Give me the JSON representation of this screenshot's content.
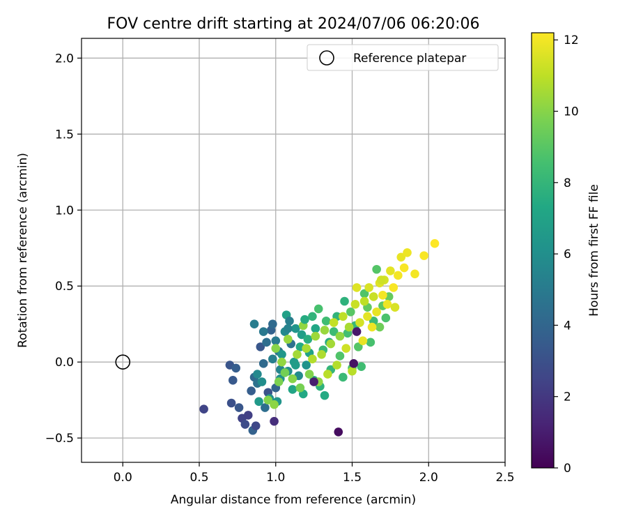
{
  "chart_data": {
    "type": "scatter",
    "title": "FOV centre drift starting at 2024/07/06 06:20:06",
    "xlabel": "Angular distance from reference (arcmin)",
    "ylabel": "Rotation from reference (arcmin)",
    "xlim": [
      -0.27,
      2.5
    ],
    "ylim": [
      -0.66,
      2.13
    ],
    "xticks": [
      0.0,
      0.5,
      1.0,
      1.5,
      2.0,
      2.5
    ],
    "xtick_labels": [
      "0.0",
      "0.5",
      "1.0",
      "1.5",
      "2.0",
      "2.5"
    ],
    "yticks": [
      -0.5,
      0.0,
      0.5,
      1.0,
      1.5,
      2.0
    ],
    "ytick_labels": [
      "−0.5",
      "0.0",
      "0.5",
      "1.0",
      "1.5",
      "2.0"
    ],
    "grid": true,
    "legend": {
      "placement": "top-right",
      "entries": [
        {
          "label": "Reference platepar",
          "marker": "open-circle"
        }
      ]
    },
    "reference_point": {
      "x": 0.0,
      "y": 0.0
    },
    "colorbar": {
      "label": "Hours from first FF file",
      "colormap": "viridis",
      "range": [
        0,
        12.2
      ],
      "ticks": [
        0,
        2,
        4,
        6,
        8,
        10,
        12
      ],
      "tick_labels": [
        "0",
        "2",
        "4",
        "6",
        "8",
        "10",
        "12"
      ]
    },
    "series": [
      {
        "points": [
          {
            "x": 0.53,
            "y": -0.31,
            "c": 2.5
          },
          {
            "x": 0.7,
            "y": -0.02,
            "c": 3.2
          },
          {
            "x": 0.71,
            "y": -0.27,
            "c": 3.0
          },
          {
            "x": 0.72,
            "y": -0.12,
            "c": 3.4
          },
          {
            "x": 0.74,
            "y": -0.04,
            "c": 3.6
          },
          {
            "x": 0.76,
            "y": -0.3,
            "c": 3.3
          },
          {
            "x": 0.78,
            "y": -0.37,
            "c": 2.4
          },
          {
            "x": 0.8,
            "y": -0.41,
            "c": 2.8
          },
          {
            "x": 0.82,
            "y": -0.35,
            "c": 2.3
          },
          {
            "x": 0.84,
            "y": -0.19,
            "c": 3.6
          },
          {
            "x": 0.85,
            "y": -0.45,
            "c": 3.8
          },
          {
            "x": 0.86,
            "y": -0.1,
            "c": 4.1
          },
          {
            "x": 0.87,
            "y": -0.42,
            "c": 2.6
          },
          {
            "x": 0.88,
            "y": -0.14,
            "c": 4.6
          },
          {
            "x": 0.9,
            "y": 0.1,
            "c": 3.3
          },
          {
            "x": 0.92,
            "y": -0.01,
            "c": 4.2
          },
          {
            "x": 0.93,
            "y": -0.3,
            "c": 4.4
          },
          {
            "x": 0.95,
            "y": -0.2,
            "c": 3.1
          },
          {
            "x": 0.97,
            "y": 0.21,
            "c": 3.8
          },
          {
            "x": 0.98,
            "y": 0.02,
            "c": 5.2
          },
          {
            "x": 0.99,
            "y": -0.39,
            "c": 1.6
          },
          {
            "x": 1.0,
            "y": -0.17,
            "c": 3.9
          },
          {
            "x": 1.02,
            "y": 0.07,
            "c": 4.7
          },
          {
            "x": 1.03,
            "y": -0.05,
            "c": 5.5
          },
          {
            "x": 0.86,
            "y": 0.25,
            "c": 5.1
          },
          {
            "x": 0.88,
            "y": -0.08,
            "c": 5.7
          },
          {
            "x": 0.89,
            "y": -0.26,
            "c": 6.5
          },
          {
            "x": 0.91,
            "y": -0.13,
            "c": 5.9
          },
          {
            "x": 0.94,
            "y": 0.13,
            "c": 4.4
          },
          {
            "x": 0.96,
            "y": -0.24,
            "c": 6.0
          },
          {
            "x": 0.98,
            "y": 0.25,
            "c": 4.2
          },
          {
            "x": 1.0,
            "y": 0.14,
            "c": 5.0
          },
          {
            "x": 1.01,
            "y": -0.26,
            "c": 6.3
          },
          {
            "x": 1.03,
            "y": -0.11,
            "c": 6.1
          },
          {
            "x": 1.04,
            "y": 0.05,
            "c": 6.4
          },
          {
            "x": 1.06,
            "y": 0.2,
            "c": 5.7
          },
          {
            "x": 1.07,
            "y": 0.31,
            "c": 6.9
          },
          {
            "x": 1.08,
            "y": -0.06,
            "c": 6.0
          },
          {
            "x": 1.09,
            "y": 0.27,
            "c": 5.2
          },
          {
            "x": 1.1,
            "y": 0.12,
            "c": 4.6
          },
          {
            "x": 1.11,
            "y": -0.18,
            "c": 7.1
          },
          {
            "x": 1.12,
            "y": 0.0,
            "c": 6.6
          },
          {
            "x": 1.13,
            "y": 0.22,
            "c": 6.3
          },
          {
            "x": 1.15,
            "y": -0.09,
            "c": 5.8
          },
          {
            "x": 1.16,
            "y": 0.1,
            "c": 7.4
          },
          {
            "x": 1.17,
            "y": 0.18,
            "c": 6.8
          },
          {
            "x": 1.18,
            "y": -0.21,
            "c": 7.3
          },
          {
            "x": 1.2,
            "y": -0.02,
            "c": 6.2
          },
          {
            "x": 1.21,
            "y": 0.15,
            "c": 7.6
          },
          {
            "x": 1.22,
            "y": 0.06,
            "c": 7.0
          },
          {
            "x": 1.24,
            "y": 0.3,
            "c": 7.9
          },
          {
            "x": 1.25,
            "y": -0.12,
            "c": 7.7
          },
          {
            "x": 1.26,
            "y": 0.22,
            "c": 7.2
          },
          {
            "x": 1.28,
            "y": 0.35,
            "c": 8.6
          },
          {
            "x": 1.29,
            "y": -0.16,
            "c": 7.8
          },
          {
            "x": 1.31,
            "y": 0.08,
            "c": 8.1
          },
          {
            "x": 1.32,
            "y": -0.22,
            "c": 7.4
          },
          {
            "x": 1.33,
            "y": 0.27,
            "c": 8.4
          },
          {
            "x": 1.35,
            "y": 0.13,
            "c": 7.5
          },
          {
            "x": 1.36,
            "y": -0.05,
            "c": 8.0
          },
          {
            "x": 1.38,
            "y": 0.2,
            "c": 8.3
          },
          {
            "x": 1.4,
            "y": 0.3,
            "c": 7.9
          },
          {
            "x": 1.42,
            "y": 0.04,
            "c": 8.8
          },
          {
            "x": 1.44,
            "y": -0.1,
            "c": 8.2
          },
          {
            "x": 1.45,
            "y": 0.4,
            "c": 7.8
          },
          {
            "x": 1.47,
            "y": 0.19,
            "c": 8.5
          },
          {
            "x": 1.49,
            "y": 0.33,
            "c": 9.0
          },
          {
            "x": 1.5,
            "y": -0.04,
            "c": 8.7
          },
          {
            "x": 1.52,
            "y": 0.24,
            "c": 8.1
          },
          {
            "x": 1.54,
            "y": 0.1,
            "c": 8.9
          },
          {
            "x": 1.56,
            "y": -0.03,
            "c": 8.4
          },
          {
            "x": 1.58,
            "y": 0.45,
            "c": 8.8
          },
          {
            "x": 1.6,
            "y": 0.36,
            "c": 9.2
          },
          {
            "x": 1.62,
            "y": 0.13,
            "c": 8.6
          },
          {
            "x": 1.64,
            "y": 0.27,
            "c": 8.3
          },
          {
            "x": 1.66,
            "y": 0.61,
            "c": 8.9
          },
          {
            "x": 1.68,
            "y": 0.23,
            "c": 9.5
          },
          {
            "x": 1.7,
            "y": 0.37,
            "c": 9.1
          },
          {
            "x": 1.72,
            "y": 0.29,
            "c": 8.7
          },
          {
            "x": 1.74,
            "y": 0.43,
            "c": 9.3
          },
          {
            "x": 1.0,
            "y": 0.09,
            "c": 10.0
          },
          {
            "x": 1.02,
            "y": -0.13,
            "c": 9.8
          },
          {
            "x": 1.04,
            "y": 0.0,
            "c": 10.2
          },
          {
            "x": 1.06,
            "y": -0.07,
            "c": 9.6
          },
          {
            "x": 0.95,
            "y": -0.25,
            "c": 9.9
          },
          {
            "x": 0.99,
            "y": -0.28,
            "c": 10.1
          },
          {
            "x": 1.08,
            "y": 0.15,
            "c": 10.3
          },
          {
            "x": 1.11,
            "y": -0.11,
            "c": 10.0
          },
          {
            "x": 1.14,
            "y": 0.05,
            "c": 10.5
          },
          {
            "x": 1.16,
            "y": -0.17,
            "c": 9.7
          },
          {
            "x": 1.18,
            "y": 0.24,
            "c": 10.2
          },
          {
            "x": 1.2,
            "y": 0.09,
            "c": 10.6
          },
          {
            "x": 1.22,
            "y": -0.08,
            "c": 9.9
          },
          {
            "x": 1.24,
            "y": 0.02,
            "c": 10.8
          },
          {
            "x": 1.26,
            "y": 0.17,
            "c": 10.4
          },
          {
            "x": 1.28,
            "y": -0.13,
            "c": 10.1
          },
          {
            "x": 1.3,
            "y": 0.05,
            "c": 10.7
          },
          {
            "x": 1.32,
            "y": 0.21,
            "c": 10.3
          },
          {
            "x": 1.34,
            "y": -0.08,
            "c": 10.9
          },
          {
            "x": 1.36,
            "y": 0.12,
            "c": 10.5
          },
          {
            "x": 1.38,
            "y": 0.26,
            "c": 11.1
          },
          {
            "x": 1.4,
            "y": -0.02,
            "c": 10.8
          },
          {
            "x": 1.42,
            "y": 0.17,
            "c": 10.2
          },
          {
            "x": 1.44,
            "y": 0.3,
            "c": 11.0
          },
          {
            "x": 1.46,
            "y": 0.09,
            "c": 11.3
          },
          {
            "x": 1.48,
            "y": 0.23,
            "c": 10.6
          },
          {
            "x": 1.5,
            "y": -0.06,
            "c": 10.9
          },
          {
            "x": 1.52,
            "y": 0.38,
            "c": 11.2
          },
          {
            "x": 1.53,
            "y": 0.49,
            "c": 11.6
          },
          {
            "x": 1.55,
            "y": 0.26,
            "c": 11.4
          },
          {
            "x": 1.57,
            "y": 0.14,
            "c": 11.8
          },
          {
            "x": 1.58,
            "y": 0.4,
            "c": 11.0
          },
          {
            "x": 1.6,
            "y": 0.3,
            "c": 11.7
          },
          {
            "x": 1.61,
            "y": 0.49,
            "c": 11.5
          },
          {
            "x": 1.63,
            "y": 0.23,
            "c": 11.9
          },
          {
            "x": 1.64,
            "y": 0.43,
            "c": 11.2
          },
          {
            "x": 1.66,
            "y": 0.33,
            "c": 11.8
          },
          {
            "x": 1.68,
            "y": 0.52,
            "c": 11.6
          },
          {
            "x": 1.7,
            "y": 0.44,
            "c": 12.0
          },
          {
            "x": 1.71,
            "y": 0.54,
            "c": 11.4
          },
          {
            "x": 1.73,
            "y": 0.38,
            "c": 11.9
          },
          {
            "x": 1.75,
            "y": 0.6,
            "c": 11.7
          },
          {
            "x": 1.77,
            "y": 0.49,
            "c": 12.1
          },
          {
            "x": 1.78,
            "y": 0.36,
            "c": 11.5
          },
          {
            "x": 1.8,
            "y": 0.57,
            "c": 12.0
          },
          {
            "x": 1.82,
            "y": 0.69,
            "c": 11.8
          },
          {
            "x": 1.84,
            "y": 0.62,
            "c": 12.1
          },
          {
            "x": 1.86,
            "y": 0.72,
            "c": 11.9
          },
          {
            "x": 1.91,
            "y": 0.58,
            "c": 12.0
          },
          {
            "x": 1.97,
            "y": 0.7,
            "c": 12.1
          },
          {
            "x": 2.04,
            "y": 0.78,
            "c": 12.2
          },
          {
            "x": 1.69,
            "y": 0.54,
            "c": 11.3
          },
          {
            "x": 1.41,
            "y": -0.46,
            "c": 0.4
          },
          {
            "x": 1.51,
            "y": -0.01,
            "c": 0.6
          },
          {
            "x": 1.53,
            "y": 0.2,
            "c": 0.8
          },
          {
            "x": 1.25,
            "y": -0.13,
            "c": 1.0
          },
          {
            "x": 1.08,
            "y": 0.22,
            "c": 5.4
          },
          {
            "x": 1.13,
            "y": -0.02,
            "c": 6.7
          },
          {
            "x": 1.19,
            "y": 0.28,
            "c": 7.5
          },
          {
            "x": 0.92,
            "y": 0.2,
            "c": 4.9
          }
        ]
      }
    ]
  }
}
